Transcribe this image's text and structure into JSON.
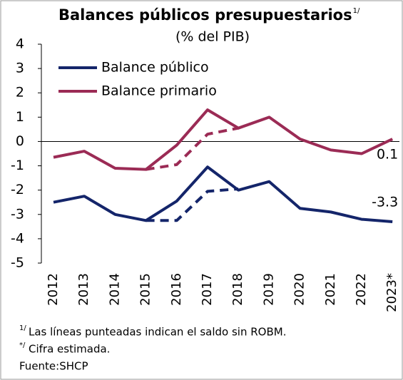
{
  "chart_data": {
    "type": "line",
    "title": "Balances públicos presupuestarios",
    "title_note": "1/",
    "subtitle": "(% del PIB)",
    "categories": [
      "2012",
      "2013",
      "2014",
      "2015",
      "2016",
      "2017",
      "2018",
      "2019",
      "2020",
      "2021",
      "2022",
      "2023*"
    ],
    "series": [
      {
        "name": "Balance público",
        "color": "#14256a",
        "values": [
          -2.5,
          -2.25,
          -3.0,
          -3.25,
          -2.45,
          -1.05,
          -2.0,
          -1.65,
          -2.75,
          -2.9,
          -3.2,
          -3.3
        ]
      },
      {
        "name": "Balance primario",
        "color": "#9b2b55",
        "values": [
          -0.65,
          -0.4,
          -1.1,
          -1.15,
          -0.15,
          1.3,
          0.55,
          1.0,
          0.1,
          -0.35,
          -0.5,
          0.1
        ]
      }
    ],
    "dashed_series": [
      {
        "color": "#14256a",
        "values": [
          null,
          null,
          null,
          -3.25,
          -3.25,
          -2.05,
          -1.95,
          null,
          null,
          null,
          null,
          null
        ]
      },
      {
        "color": "#9b2b55",
        "values": [
          null,
          null,
          null,
          -1.15,
          -0.95,
          0.3,
          0.55,
          null,
          null,
          null,
          null,
          null
        ]
      }
    ],
    "ylim": [
      -5,
      4
    ],
    "yticks": [
      -5,
      -4,
      -3,
      -2,
      -1,
      0,
      1,
      2,
      3,
      4
    ],
    "footnotes": [
      {
        "mark": "1/",
        "text": "Las líneas punteadas indican el saldo sin ROBM."
      },
      {
        "mark": "*/",
        "text": "Cifra estimada."
      },
      {
        "mark": "",
        "text": "Fuente:SHCP"
      }
    ]
  }
}
